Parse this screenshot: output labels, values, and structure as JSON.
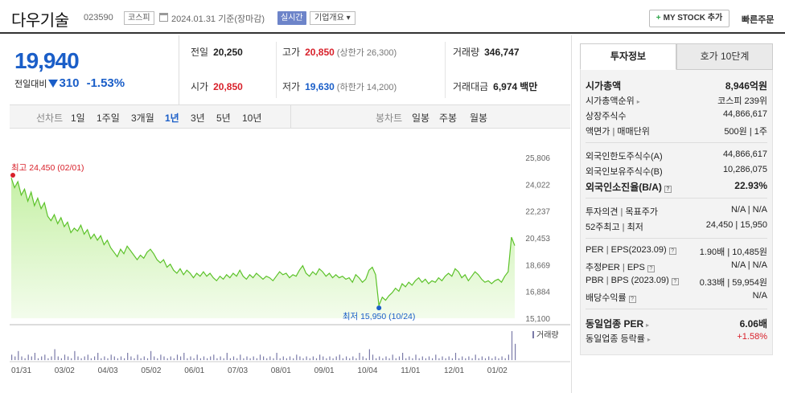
{
  "header": {
    "name": "다우기술",
    "code": "023590",
    "market": "코스피",
    "date": "2024.01.31 기준(장마감)",
    "live": "실시간",
    "corp_info": "기업개요 ▾",
    "mystock": "MY STOCK 추가",
    "mystock_plus": "+",
    "quick": "빠른주문"
  },
  "price": {
    "now": "19,940",
    "change_label": "전일대비",
    "change_value": "310",
    "change_rate": "-1.53%"
  },
  "stats": {
    "prev_label": "전일",
    "prev": "20,250",
    "open_label": "시가",
    "open": "20,850",
    "high_label": "고가",
    "high": "20,850",
    "high_limit": "(상한가 26,300)",
    "low_label": "저가",
    "low": "19,630",
    "low_limit": "(하한가 14,200)",
    "volume_label": "거래량",
    "volume": "346,747",
    "amount_label": "거래대금",
    "amount": "6,974",
    "amount_unit": "백만"
  },
  "period_tabs": {
    "label": "선차트",
    "items": [
      "1일",
      "1주일",
      "3개월",
      "1년",
      "3년",
      "5년",
      "10년"
    ],
    "active": "1년",
    "candle_label": "봉차트",
    "candle_items": [
      "일봉",
      "주봉",
      "월봉"
    ]
  },
  "chart_data": {
    "type": "area",
    "xlabels": [
      "01/31",
      "03/02",
      "04/03",
      "05/02",
      "06/01",
      "07/03",
      "08/01",
      "09/01",
      "10/04",
      "11/01",
      "12/01",
      "01/02"
    ],
    "yticks": [
      "25,806",
      "24,022",
      "22,237",
      "20,453",
      "18,669",
      "16,884",
      "15,100"
    ],
    "ylim": [
      15100,
      25806
    ],
    "max_label": "최고 24,450 (02/01)",
    "min_label": "최저 15,950 (10/24)",
    "volume_label": "거래량",
    "prices": [
      24450,
      23800,
      24200,
      23300,
      23700,
      22900,
      23500,
      22600,
      23100,
      22400,
      22800,
      21900,
      21600,
      22000,
      21400,
      21800,
      21200,
      21500,
      20800,
      21100,
      20900,
      21300,
      20700,
      21000,
      20400,
      20700,
      20300,
      20600,
      20000,
      20300,
      19800,
      19500,
      19200,
      19700,
      19400,
      19900,
      19600,
      19300,
      19000,
      19300,
      19100,
      19500,
      19700,
      19400,
      19000,
      18800,
      19000,
      18500,
      18700,
      18300,
      18100,
      18400,
      18000,
      18300,
      18100,
      17800,
      18100,
      17900,
      18200,
      17900,
      18100,
      17800,
      17600,
      17900,
      17700,
      18000,
      17800,
      18100,
      17900,
      18300,
      17900,
      17700,
      18000,
      17800,
      18100,
      17900,
      17700,
      17900,
      17800,
      17600,
      17900,
      18200,
      18000,
      18100,
      17800,
      18000,
      17900,
      18300,
      18600,
      18100,
      17900,
      18200,
      18000,
      18400,
      18200,
      17900,
      18100,
      17800,
      18000,
      17800,
      17900,
      17700,
      17800,
      17500,
      18000,
      17800,
      17500,
      17700,
      18300,
      18500,
      18000,
      15950,
      16500,
      16300,
      16600,
      16800,
      17100,
      16900,
      17400,
      17200,
      17500,
      17300,
      17600,
      17800,
      17500,
      17700,
      17400,
      17600,
      17500,
      17800,
      17600,
      17900,
      18100,
      17900,
      18400,
      18200,
      17800,
      18000,
      17600,
      17900,
      18200,
      18000,
      17700,
      17500,
      17600,
      17400,
      17600,
      17700,
      17500,
      17900,
      18200,
      20500,
      19940
    ],
    "volumes": [
      3,
      2,
      5,
      2,
      1,
      3,
      2,
      4,
      1,
      2,
      3,
      1,
      2,
      6,
      2,
      1,
      3,
      2,
      1,
      5,
      2,
      1,
      2,
      3,
      1,
      2,
      4,
      1,
      2,
      1,
      3,
      2,
      1,
      2,
      1,
      4,
      2,
      1,
      3,
      1,
      2,
      1,
      5,
      2,
      1,
      3,
      2,
      1,
      2,
      1,
      3,
      2,
      4,
      1,
      2,
      1,
      3,
      1,
      2,
      1,
      2,
      3,
      1,
      2,
      1,
      4,
      1,
      2,
      1,
      3,
      1,
      2,
      1,
      2,
      1,
      3,
      2,
      1,
      2,
      1,
      4,
      1,
      2,
      1,
      2,
      1,
      3,
      2,
      1,
      2,
      1,
      2,
      1,
      3,
      2,
      1,
      2,
      1,
      2,
      3,
      1,
      2,
      1,
      2,
      1,
      4,
      2,
      1,
      6,
      3,
      1,
      2,
      1,
      2,
      1,
      3,
      1,
      2,
      4,
      1,
      2,
      1,
      3,
      1,
      2,
      1,
      2,
      1,
      3,
      1,
      2,
      1,
      2,
      1,
      4,
      1,
      2,
      1,
      2,
      1,
      3,
      1,
      2,
      1,
      2,
      1,
      2,
      1,
      2,
      1,
      3,
      16,
      9
    ]
  },
  "right": {
    "tab_active": "투자정보",
    "tab_other": "호가 10단계",
    "rows": {
      "mcap_label": "시가총액",
      "mcap": "8,946억원",
      "mcap_rank_label": "시가총액순위",
      "mcap_rank": "코스피 239위",
      "shares_label": "상장주식수",
      "shares": "44,866,617",
      "par_label": "액면가",
      "par_sep": "|",
      "unit_label": "매매단위",
      "par_unit": "500원 | 1주",
      "foreign_a_label": "외국인한도주식수(A)",
      "foreign_a": "44,866,617",
      "foreign_b_label": "외국인보유주식수(B)",
      "foreign_b": "10,286,075",
      "foreign_ratio_label": "외국인소진율(B/A)",
      "foreign_ratio": "22.93%",
      "opinion_label": "투자의견",
      "target_label": "목표주가",
      "opinion_val": "N/A | N/A",
      "w52_label": "52주최고",
      "w52_low_label": "최저",
      "w52_val": "24,450 | 15,950",
      "per_label": "PER",
      "eps_label": "EPS(2023.09)",
      "per_val": "1.90배 | 10,485원",
      "eper_label": "추정PER",
      "eeps_label": "EPS",
      "eper_val": "N/A | N/A",
      "pbr_label": "PBR",
      "bps_label": "BPS (2023.09)",
      "pbr_val": "0.33배 | 59,954원",
      "div_label": "배당수익률",
      "div_val": "N/A",
      "sector_per_label": "동일업종 PER",
      "sector_per": "6.06배",
      "sector_rate_label": "동일업종 등락률",
      "sector_rate": "+1.58%"
    }
  }
}
